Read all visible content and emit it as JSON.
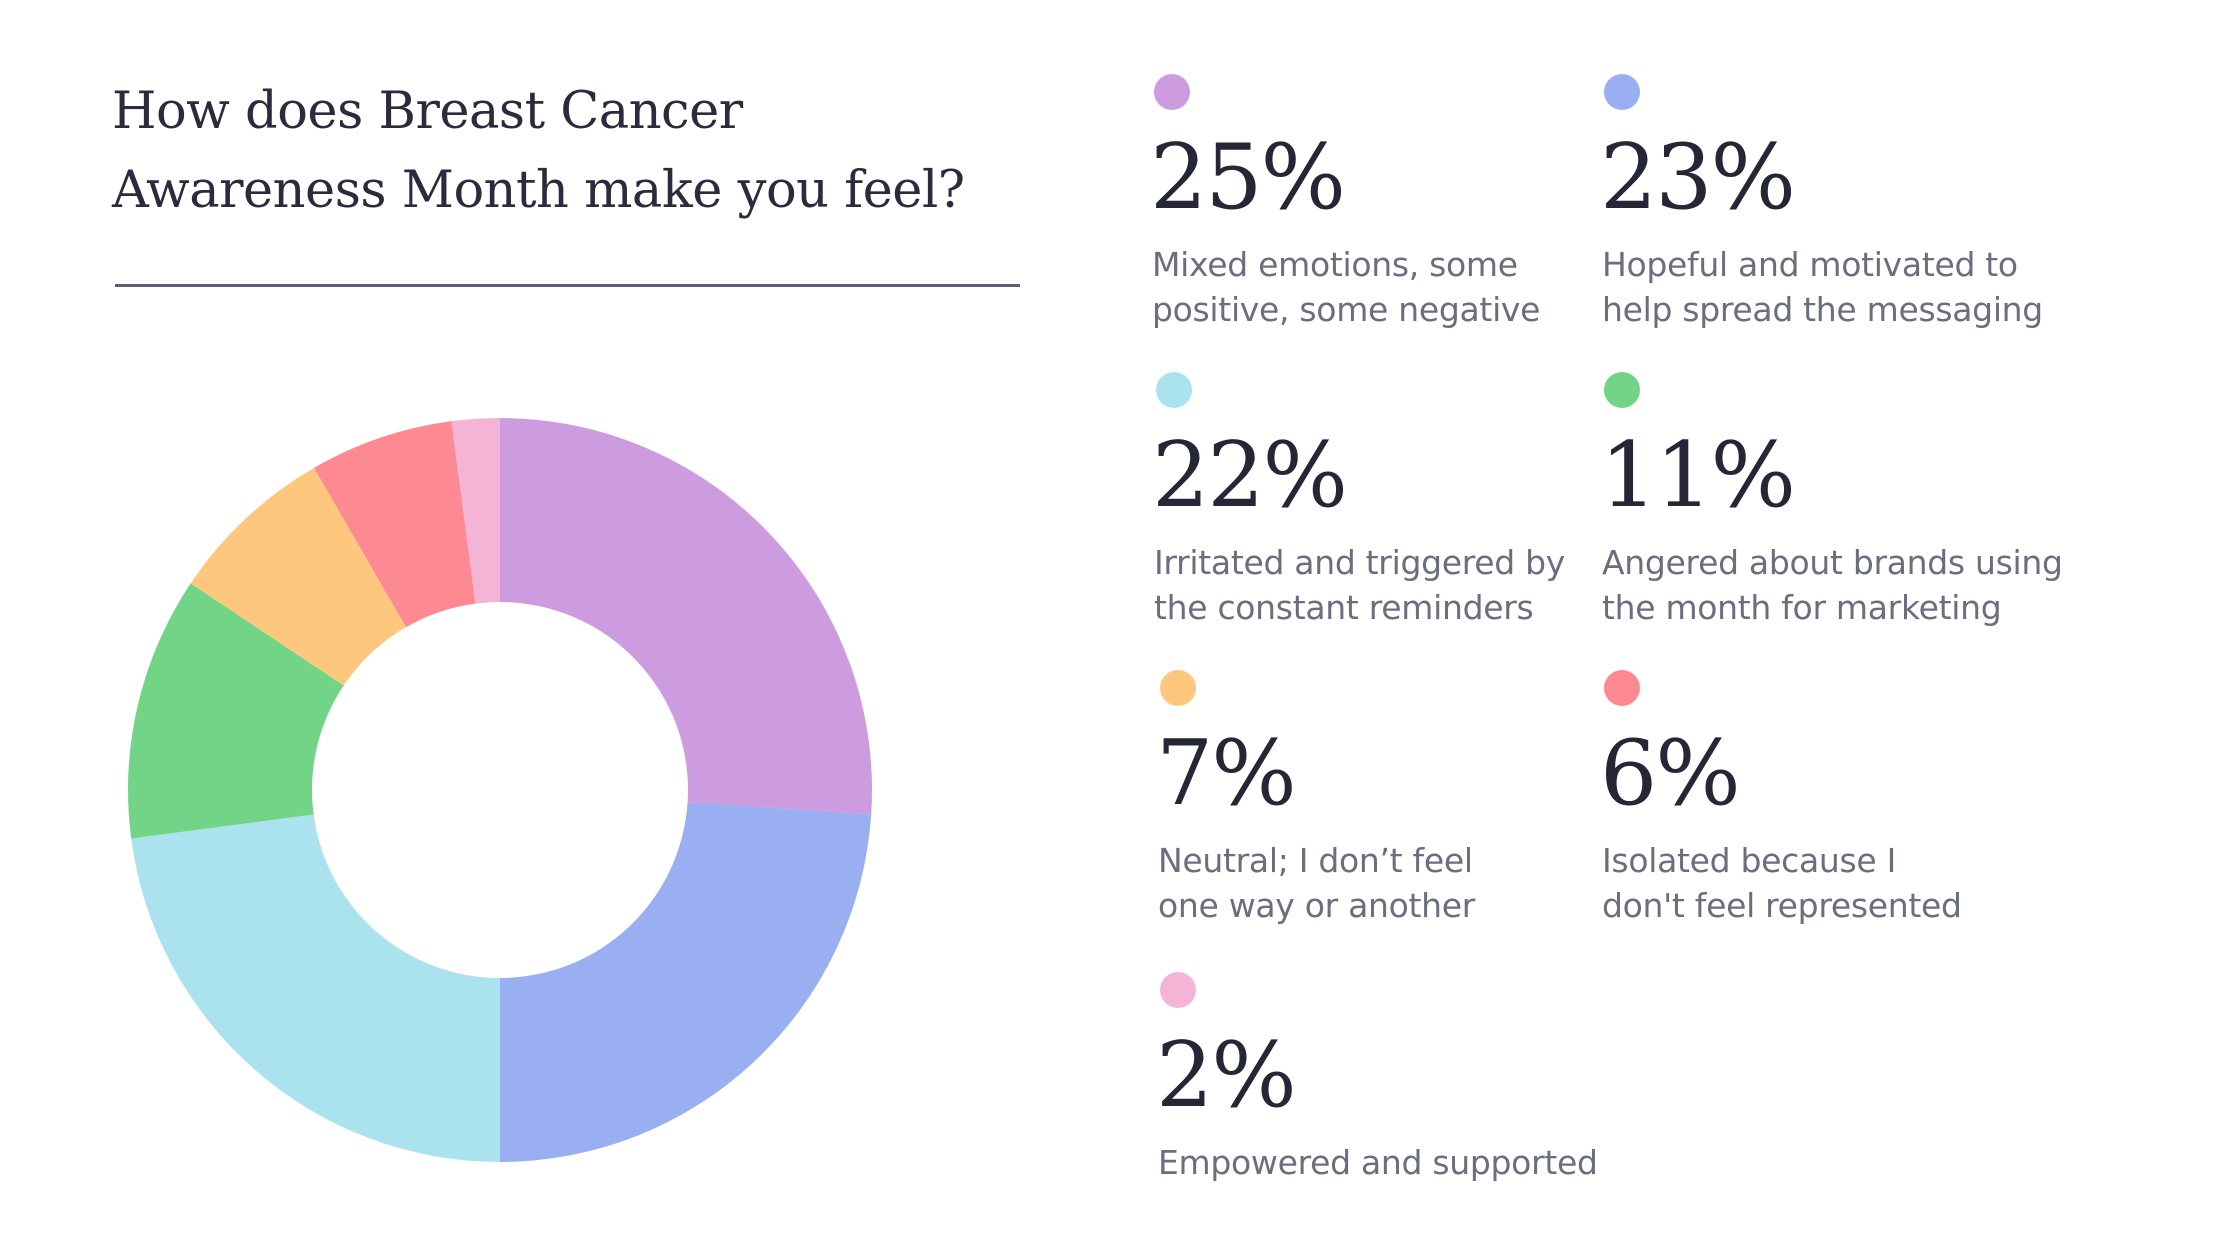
{
  "title_lines": [
    "How does Breast Cancer",
    "Awareness Month make you feel?"
  ],
  "chart_data": {
    "type": "pie",
    "donut": true,
    "title": "How does Breast Cancer Awareness Month make you feel?",
    "unit": "%",
    "slices": [
      {
        "value": 25,
        "pct_label": "25%",
        "label_lines": [
          "Mixed emotions, some",
          "positive, some negative"
        ],
        "color": "#cd9be0",
        "dot_name": "purple-dot-icon"
      },
      {
        "value": 23,
        "pct_label": "23%",
        "label_lines": [
          "Hopeful and motivated to",
          "help spread the messaging"
        ],
        "color": "#9aaff2",
        "dot_name": "blue-dot-icon"
      },
      {
        "value": 22,
        "pct_label": "22%",
        "label_lines": [
          "Irritated and triggered by",
          "the constant reminders"
        ],
        "color": "#aae3ee",
        "dot_name": "light-blue-dot-icon"
      },
      {
        "value": 11,
        "pct_label": "11%",
        "label_lines": [
          "Angered about brands using",
          "the month for marketing"
        ],
        "color": "#72d486",
        "dot_name": "green-dot-icon"
      },
      {
        "value": 7,
        "pct_label": "7%",
        "label_lines": [
          "Neutral; I don’t feel",
          "one way or another"
        ],
        "color": "#fdc87e",
        "dot_name": "orange-dot-icon"
      },
      {
        "value": 6,
        "pct_label": "6%",
        "label_lines": [
          "Isolated because I",
          "don't feel represented"
        ],
        "color": "#fd8a92",
        "dot_name": "red-dot-icon"
      },
      {
        "value": 2,
        "pct_label": "2%",
        "label_lines": [
          "Empowered and supported"
        ],
        "color": "#f4b4d6",
        "dot_name": "pink-dot-icon"
      }
    ]
  }
}
